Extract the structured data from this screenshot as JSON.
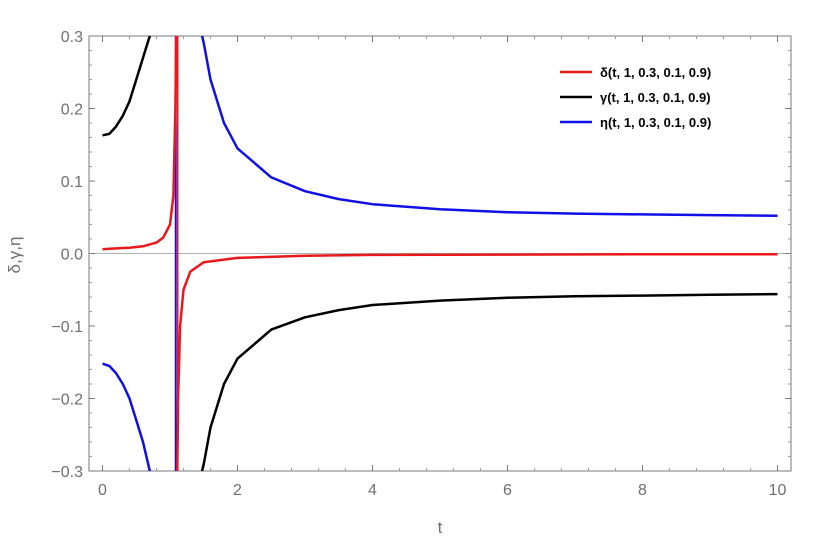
{
  "chart_data": {
    "type": "line",
    "title": "",
    "xlabel": "t",
    "ylabel": "δ,γ,η",
    "xlim": [
      -0.2,
      10.2
    ],
    "ylim": [
      -0.3,
      0.3
    ],
    "x_ticks": [
      0,
      2,
      4,
      6,
      8,
      10
    ],
    "x_tick_labels": [
      "0",
      "2",
      "4",
      "6",
      "8",
      "10"
    ],
    "y_ticks": [
      -0.3,
      -0.2,
      -0.1,
      0.0,
      0.1,
      0.2,
      0.3
    ],
    "y_tick_labels": [
      "−0.3",
      "−0.2",
      "−0.1",
      "0.0",
      "0.1",
      "0.2",
      "0.3"
    ],
    "grid": false,
    "frame": true,
    "legend_position": "top-right",
    "asymptote_t": 1.1,
    "series": [
      {
        "name": "δ(t, 1, 0.3, 0.1, 0.9)",
        "color": "#e8191c",
        "x": [
          0,
          0.2,
          0.4,
          0.6,
          0.8,
          0.9,
          1.0,
          1.05,
          1.08,
          1.095,
          1.105,
          1.12,
          1.15,
          1.2,
          1.3,
          1.5,
          2,
          3,
          4,
          6,
          8,
          10
        ],
        "y": [
          0.006,
          0.007,
          0.008,
          0.01,
          0.015,
          0.022,
          0.04,
          0.08,
          0.2,
          0.32,
          -0.32,
          -0.2,
          -0.1,
          -0.05,
          -0.025,
          -0.012,
          -0.006,
          -0.003,
          -0.002,
          -0.0015,
          -0.001,
          -0.001
        ]
      },
      {
        "name": "γ(t, 1, 0.3, 0.1, 0.9)",
        "color": "#000000",
        "x": [
          0,
          0.1,
          0.2,
          0.3,
          0.4,
          0.5,
          0.6,
          0.65,
          0.7,
          0.72,
          1.45,
          1.5,
          1.6,
          1.8,
          2,
          2.5,
          3,
          3.5,
          4,
          5,
          6,
          7,
          8,
          9,
          10
        ],
        "y": [
          0.163,
          0.165,
          0.175,
          0.19,
          0.21,
          0.24,
          0.27,
          0.285,
          0.3,
          0.31,
          -0.31,
          -0.29,
          -0.24,
          -0.18,
          -0.145,
          -0.105,
          -0.088,
          -0.078,
          -0.071,
          -0.065,
          -0.061,
          -0.059,
          -0.058,
          -0.057,
          -0.056
        ]
      },
      {
        "name": "η(t, 1, 0.3, 0.1, 0.9)",
        "color": "#1010e6",
        "x": [
          0,
          0.1,
          0.2,
          0.3,
          0.4,
          0.5,
          0.6,
          0.65,
          0.7,
          0.72,
          1.45,
          1.5,
          1.6,
          1.8,
          2,
          2.5,
          3,
          3.5,
          4,
          5,
          6,
          7,
          8,
          9,
          10
        ],
        "y": [
          -0.152,
          -0.155,
          -0.165,
          -0.18,
          -0.2,
          -0.23,
          -0.26,
          -0.28,
          -0.3,
          -0.31,
          0.31,
          0.29,
          0.24,
          0.18,
          0.145,
          0.105,
          0.086,
          0.075,
          0.068,
          0.061,
          0.057,
          0.055,
          0.054,
          0.053,
          0.052
        ]
      }
    ]
  }
}
